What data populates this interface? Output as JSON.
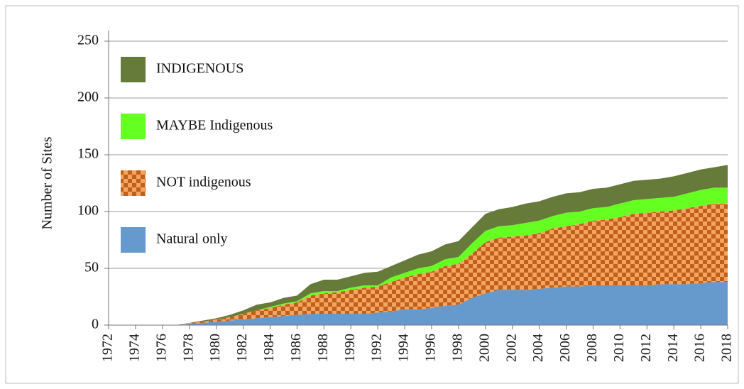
{
  "chart_data": {
    "type": "stacked_area",
    "y_label": "Number of Sites",
    "x": [
      1972,
      1973,
      1974,
      1975,
      1976,
      1977,
      1978,
      1979,
      1980,
      1981,
      1982,
      1983,
      1984,
      1985,
      1986,
      1987,
      1988,
      1989,
      1990,
      1991,
      1992,
      1993,
      1994,
      1995,
      1996,
      1997,
      1998,
      1999,
      2000,
      2001,
      2002,
      2003,
      2004,
      2005,
      2006,
      2007,
      2008,
      2009,
      2010,
      2011,
      2012,
      2013,
      2014,
      2015,
      2016,
      2017,
      2018
    ],
    "xlim": [
      1972,
      2018
    ],
    "xticks": [
      1972,
      1974,
      1976,
      1978,
      1980,
      1982,
      1984,
      1986,
      1988,
      1990,
      1992,
      1994,
      1996,
      1998,
      2000,
      2002,
      2004,
      2006,
      2008,
      2010,
      2012,
      2014,
      2016,
      2018
    ],
    "ylim": [
      0,
      250
    ],
    "yticks": [
      0,
      50,
      100,
      150,
      200,
      250
    ],
    "grid": true,
    "legend": "upper left",
    "series": [
      {
        "name": "Natural only",
        "color": "#6699cc",
        "values": [
          0,
          0,
          0,
          0,
          0,
          0,
          1,
          2,
          3,
          4,
          5,
          6,
          7,
          8,
          9,
          10,
          10,
          10,
          10,
          10,
          11,
          12,
          14,
          14,
          15,
          17,
          18,
          24,
          28,
          31,
          31,
          31,
          32,
          33,
          34,
          34,
          35,
          35,
          35,
          35,
          35,
          36,
          36,
          36,
          37,
          38,
          38
        ]
      },
      {
        "name": "NOT indigenous",
        "color": "#f4a460",
        "values": [
          0,
          0,
          0,
          0,
          0,
          0,
          1,
          1,
          2,
          3,
          5,
          7,
          8,
          10,
          11,
          16,
          18,
          19,
          21,
          23,
          23,
          26,
          28,
          31,
          32,
          35,
          36,
          39,
          45,
          46,
          47,
          48,
          49,
          52,
          53,
          55,
          57,
          58,
          60,
          63,
          64,
          64,
          65,
          67,
          68,
          69,
          69
        ]
      },
      {
        "name": "MAYBE Indigenous",
        "color": "#66ff22",
        "values": [
          0,
          0,
          0,
          0,
          0,
          0,
          0,
          0,
          0,
          0,
          0,
          0,
          1,
          1,
          1,
          2,
          2,
          1,
          2,
          2,
          1,
          4,
          4,
          5,
          5,
          6,
          6,
          9,
          10,
          10,
          10,
          11,
          11,
          11,
          12,
          11,
          11,
          11,
          12,
          12,
          12,
          12,
          12,
          13,
          14,
          14,
          14
        ]
      },
      {
        "name": "INDIGENOUS",
        "color": "#667a3a",
        "values": [
          0,
          0,
          0,
          0,
          0,
          0,
          0,
          1,
          1,
          2,
          3,
          5,
          4,
          5,
          5,
          8,
          10,
          10,
          10,
          11,
          12,
          10,
          11,
          12,
          13,
          13,
          14,
          14,
          15,
          15,
          16,
          17,
          17,
          17,
          17,
          17,
          17,
          17,
          17,
          17,
          17,
          17,
          18,
          18,
          18,
          18,
          20
        ]
      }
    ]
  }
}
